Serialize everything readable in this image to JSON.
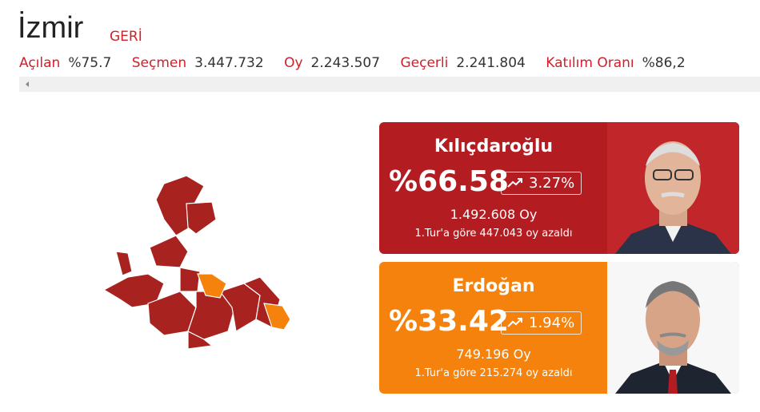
{
  "header": {
    "title": "İzmir",
    "back": "GERİ"
  },
  "stats": [
    {
      "label": "Açılan",
      "value": "%75.7"
    },
    {
      "label": "Seçmen",
      "value": "3.447.732"
    },
    {
      "label": "Oy",
      "value": "2.243.507"
    },
    {
      "label": "Geçerli",
      "value": "2.241.804"
    },
    {
      "label": "Katılım Oranı",
      "value": "%86,2"
    }
  ],
  "candidates": [
    {
      "name": "Kılıçdaroğlu",
      "percent": "%66.58",
      "change": "3.27%",
      "votes": "1.492.608 Oy",
      "note": "1.Tur'a göre 447.043 oy azaldı"
    },
    {
      "name": "Erdoğan",
      "percent": "%33.42",
      "change": "1.94%",
      "votes": "749.196 Oy",
      "note": "1.Tur'a göre 215.274 oy azaldı"
    }
  ]
}
